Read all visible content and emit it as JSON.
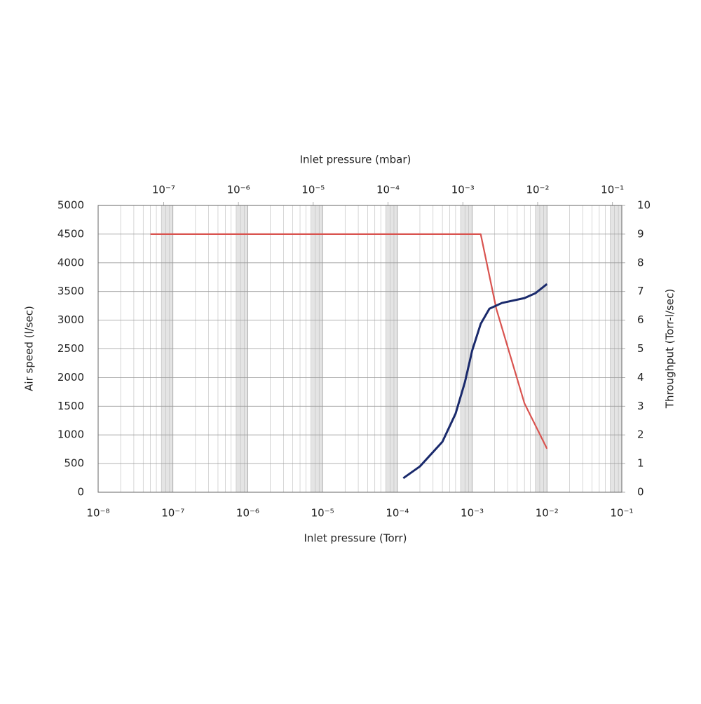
{
  "chart_data": {
    "type": "line",
    "x_label": "Inlet pressure (Torr)",
    "x2_label": "Inlet pressure (mbar)",
    "y_label": "Air speed (l/sec)",
    "y2_label": "Throughput (Torr-l/sec)",
    "x_scale": "log",
    "grid": true,
    "xlim": [
      1e-08,
      0.1
    ],
    "xticks": [
      {
        "value": 1e-08,
        "label": "10⁻⁸"
      },
      {
        "value": 1e-07,
        "label": "10⁻⁷"
      },
      {
        "value": 1e-06,
        "label": "10⁻⁶"
      },
      {
        "value": 1e-05,
        "label": "10⁻⁵"
      },
      {
        "value": 0.0001,
        "label": "10⁻⁴"
      },
      {
        "value": 0.001,
        "label": "10⁻³"
      },
      {
        "value": 0.01,
        "label": "10⁻²"
      },
      {
        "value": 0.1,
        "label": "10⁻¹"
      }
    ],
    "x2lim": [
      1.333e-08,
      0.1333
    ],
    "x2ticks": [
      {
        "value": 1e-07,
        "label": "10⁻⁷"
      },
      {
        "value": 1e-06,
        "label": "10⁻⁶"
      },
      {
        "value": 1e-05,
        "label": "10⁻⁵"
      },
      {
        "value": 0.0001,
        "label": "10⁻⁴"
      },
      {
        "value": 0.001,
        "label": "10⁻³"
      },
      {
        "value": 0.01,
        "label": "10⁻²"
      },
      {
        "value": 0.1,
        "label": "10⁻¹"
      }
    ],
    "ylim": [
      0,
      5000
    ],
    "yticks": [
      0,
      500,
      1000,
      1500,
      2000,
      2500,
      3000,
      3500,
      4000,
      4500,
      5000
    ],
    "y2lim": [
      0,
      10
    ],
    "y2ticks": [
      0,
      1,
      2,
      3,
      4,
      5,
      6,
      7,
      8,
      9,
      10
    ],
    "series": [
      {
        "color": "#d9534f",
        "axis": "y",
        "x": [
          5e-08,
          0.0013,
          0.0021,
          0.005,
          0.01
        ],
        "values": [
          4500,
          4500,
          3200,
          1550,
          760
        ]
      },
      {
        "color": "#1a2a6c",
        "axis": "y2",
        "x": [
          0.00012,
          0.0002,
          0.0004,
          0.0006,
          0.0008,
          0.001,
          0.0013,
          0.0017,
          0.0025,
          0.005,
          0.007,
          0.01
        ],
        "values": [
          0.49,
          0.9,
          1.76,
          2.74,
          3.84,
          4.94,
          5.87,
          6.4,
          6.6,
          6.77,
          6.94,
          7.26
        ]
      }
    ]
  }
}
